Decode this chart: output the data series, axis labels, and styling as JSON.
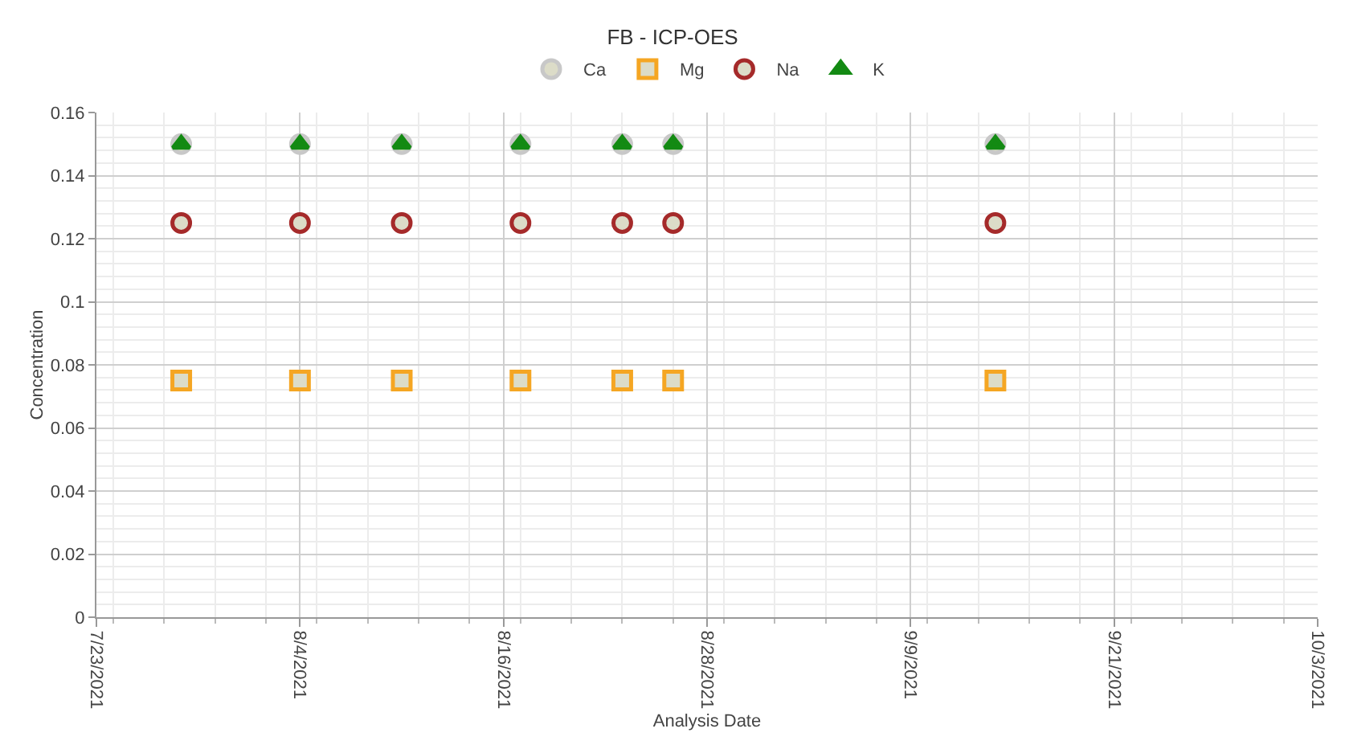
{
  "chart_data": {
    "type": "scatter",
    "title": "FB - ICP-OES",
    "xlabel": "Analysis Date",
    "ylabel": "Concentration",
    "x": [
      "2021-07-28",
      "2021-08-04",
      "2021-08-10",
      "2021-08-17",
      "2021-08-23",
      "2021-08-26",
      "2021-09-14"
    ],
    "series": [
      {
        "name": "Ca",
        "color": "#c8c8c8",
        "marker": "circle",
        "values": [
          0.15,
          0.15,
          0.15,
          0.15,
          0.15,
          0.15,
          0.15
        ]
      },
      {
        "name": "Mg",
        "color": "#f5a623",
        "marker": "square",
        "values": [
          0.075,
          0.075,
          0.075,
          0.075,
          0.075,
          0.075,
          0.075
        ]
      },
      {
        "name": "Na",
        "color": "#a52a2a",
        "marker": "circle",
        "values": [
          0.125,
          0.125,
          0.125,
          0.125,
          0.125,
          0.125,
          0.125
        ]
      },
      {
        "name": "K",
        "color": "#138a13",
        "marker": "triangle",
        "values": [
          0.15,
          0.15,
          0.15,
          0.15,
          0.15,
          0.15,
          0.15
        ]
      }
    ],
    "xlim": [
      "2021-07-23",
      "2021-10-03"
    ],
    "xticks": [
      {
        "value": "2021-07-23",
        "label": "7/23/2021"
      },
      {
        "value": "2021-08-04",
        "label": "8/4/2021"
      },
      {
        "value": "2021-08-16",
        "label": "8/16/2021"
      },
      {
        "value": "2021-08-28",
        "label": "8/28/2021"
      },
      {
        "value": "2021-09-09",
        "label": "9/9/2021"
      },
      {
        "value": "2021-09-21",
        "label": "9/21/2021"
      },
      {
        "value": "2021-10-03",
        "label": "10/3/2021"
      }
    ],
    "ylim": [
      0,
      0.16
    ],
    "yticks": [
      0,
      0.02,
      0.04,
      0.06,
      0.08,
      {
        "value": 0.1,
        "label": "0.1"
      },
      0.12,
      0.14,
      0.16
    ],
    "grid": true,
    "legend": "top"
  }
}
